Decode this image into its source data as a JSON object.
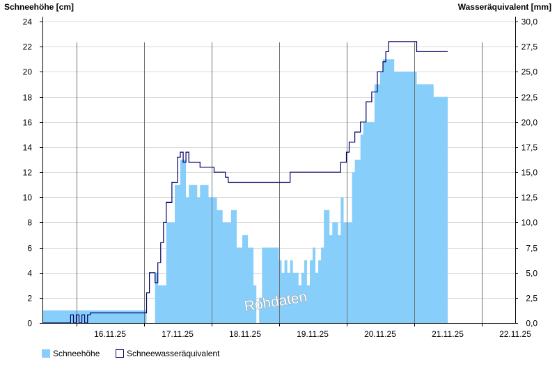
{
  "chart_data": {
    "type": "area",
    "ylabel_left": "Schneehöhe [cm]",
    "ylabel_right": "Wasseräquivalent [mm]",
    "watermark": "Rohdaten",
    "x_start": "2025-11-15T12:00",
    "x_end": "2025-11-22T12:00",
    "x_ticks": [
      "16.11.25",
      "17.11.25",
      "18.11.25",
      "19.11.25",
      "20.11.25",
      "21.11.25",
      "22.11.25"
    ],
    "ylim_left": [
      0,
      24
    ],
    "y_ticks_left": [
      "0",
      "2",
      "4",
      "6",
      "8",
      "10",
      "12",
      "14",
      "16",
      "18",
      "20",
      "22",
      "24"
    ],
    "ylim_right": [
      0,
      30
    ],
    "y_ticks_right": [
      "0,0",
      "2,5",
      "5,0",
      "7,5",
      "10,0",
      "12,5",
      "15,0",
      "17,5",
      "20,0",
      "22,5",
      "25,0",
      "27,5",
      "30,0"
    ],
    "grid": true,
    "legend_position": "bottom-left",
    "colors": {
      "snow_depth": "#87cefa",
      "swe": "#000066",
      "grid": "#d8d8d8",
      "vline": "#707070"
    },
    "series": [
      {
        "name": "Schneehöhe",
        "axis": "left",
        "style": "filled-area",
        "points": [
          [
            "2025-11-15T12:00",
            1
          ],
          [
            "2025-11-16T12:00",
            1
          ],
          [
            "2025-11-17T00:00",
            1
          ],
          [
            "2025-11-17T01:00",
            0
          ],
          [
            "2025-11-17T04:00",
            4
          ],
          [
            "2025-11-17T05:00",
            3
          ],
          [
            "2025-11-17T08:00",
            8
          ],
          [
            "2025-11-17T11:00",
            11
          ],
          [
            "2025-11-17T13:00",
            13
          ],
          [
            "2025-11-17T15:00",
            10
          ],
          [
            "2025-11-17T16:00",
            11
          ],
          [
            "2025-11-17T18:00",
            11
          ],
          [
            "2025-11-17T19:00",
            10
          ],
          [
            "2025-11-17T20:00",
            11
          ],
          [
            "2025-11-17T23:00",
            10
          ],
          [
            "2025-11-18T02:00",
            9
          ],
          [
            "2025-11-18T04:00",
            8
          ],
          [
            "2025-11-18T07:00",
            9
          ],
          [
            "2025-11-18T09:00",
            6
          ],
          [
            "2025-11-18T11:00",
            7
          ],
          [
            "2025-11-18T13:00",
            6
          ],
          [
            "2025-11-18T15:00",
            3
          ],
          [
            "2025-11-18T16:00",
            0
          ],
          [
            "2025-11-18T17:00",
            2
          ],
          [
            "2025-11-18T18:00",
            6
          ],
          [
            "2025-11-18T21:00",
            6
          ],
          [
            "2025-11-19T00:00",
            5
          ],
          [
            "2025-11-19T01:00",
            4
          ],
          [
            "2025-11-19T02:00",
            5
          ],
          [
            "2025-11-19T03:00",
            4
          ],
          [
            "2025-11-19T04:00",
            5
          ],
          [
            "2025-11-19T05:00",
            4
          ],
          [
            "2025-11-19T07:00",
            3
          ],
          [
            "2025-11-19T08:00",
            4
          ],
          [
            "2025-11-19T09:00",
            5
          ],
          [
            "2025-11-19T10:00",
            3
          ],
          [
            "2025-11-19T11:00",
            5
          ],
          [
            "2025-11-19T12:00",
            6
          ],
          [
            "2025-11-19T13:00",
            4
          ],
          [
            "2025-11-19T14:00",
            5
          ],
          [
            "2025-11-19T15:00",
            6
          ],
          [
            "2025-11-19T16:00",
            9
          ],
          [
            "2025-11-19T17:00",
            9
          ],
          [
            "2025-11-19T18:00",
            7
          ],
          [
            "2025-11-19T19:00",
            8
          ],
          [
            "2025-11-19T20:00",
            8
          ],
          [
            "2025-11-19T21:00",
            7
          ],
          [
            "2025-11-19T22:00",
            10
          ],
          [
            "2025-11-19T23:00",
            8
          ],
          [
            "2025-11-20T00:00",
            8
          ],
          [
            "2025-11-20T02:00",
            12
          ],
          [
            "2025-11-20T03:00",
            13
          ],
          [
            "2025-11-20T05:00",
            15
          ],
          [
            "2025-11-20T06:00",
            16
          ],
          [
            "2025-11-20T10:00",
            19
          ],
          [
            "2025-11-20T12:00",
            20
          ],
          [
            "2025-11-20T13:00",
            21
          ],
          [
            "2025-11-20T15:00",
            21
          ],
          [
            "2025-11-20T17:00",
            20
          ],
          [
            "2025-11-21T00:00",
            20
          ],
          [
            "2025-11-21T01:00",
            19
          ],
          [
            "2025-11-21T06:00",
            19
          ],
          [
            "2025-11-21T07:00",
            18
          ],
          [
            "2025-11-21T12:00",
            18
          ]
        ]
      },
      {
        "name": "Schneewasseräquivalent",
        "axis": "right",
        "style": "line",
        "points": [
          [
            "2025-11-15T12:00",
            0.0
          ],
          [
            "2025-11-15T21:00",
            0.0
          ],
          [
            "2025-11-15T22:00",
            0.8
          ],
          [
            "2025-11-15T23:00",
            0.0
          ],
          [
            "2025-11-16T00:00",
            0.8
          ],
          [
            "2025-11-16T01:00",
            0.0
          ],
          [
            "2025-11-16T02:00",
            0.8
          ],
          [
            "2025-11-16T03:00",
            0.0
          ],
          [
            "2025-11-16T04:00",
            0.8
          ],
          [
            "2025-11-16T05:00",
            1.0
          ],
          [
            "2025-11-16T23:00",
            1.0
          ],
          [
            "2025-11-17T01:00",
            3.0
          ],
          [
            "2025-11-17T02:00",
            5.0
          ],
          [
            "2025-11-17T04:00",
            4.0
          ],
          [
            "2025-11-17T05:00",
            6.0
          ],
          [
            "2025-11-17T06:00",
            8.0
          ],
          [
            "2025-11-17T07:00",
            10.0
          ],
          [
            "2025-11-17T08:00",
            12.0
          ],
          [
            "2025-11-17T10:00",
            14.0
          ],
          [
            "2025-11-17T12:00",
            16.5
          ],
          [
            "2025-11-17T13:00",
            17.0
          ],
          [
            "2025-11-17T14:00",
            16.0
          ],
          [
            "2025-11-17T15:00",
            17.0
          ],
          [
            "2025-11-17T16:00",
            16.0
          ],
          [
            "2025-11-17T20:00",
            15.5
          ],
          [
            "2025-11-18T01:00",
            15.0
          ],
          [
            "2025-11-18T04:00",
            15.0
          ],
          [
            "2025-11-18T05:00",
            14.5
          ],
          [
            "2025-11-18T06:00",
            14.0
          ],
          [
            "2025-11-19T00:00",
            14.0
          ],
          [
            "2025-11-19T03:00",
            14.0
          ],
          [
            "2025-11-19T04:00",
            15.0
          ],
          [
            "2025-11-19T20:00",
            15.0
          ],
          [
            "2025-11-19T22:00",
            16.0
          ],
          [
            "2025-11-20T00:00",
            17.0
          ],
          [
            "2025-11-20T01:00",
            18.0
          ],
          [
            "2025-11-20T03:00",
            19.0
          ],
          [
            "2025-11-20T05:00",
            20.0
          ],
          [
            "2025-11-20T07:00",
            22.0
          ],
          [
            "2025-11-20T09:00",
            23.0
          ],
          [
            "2025-11-20T11:00",
            25.0
          ],
          [
            "2025-11-20T13:00",
            26.0
          ],
          [
            "2025-11-20T14:00",
            27.0
          ],
          [
            "2025-11-20T15:00",
            28.0
          ],
          [
            "2025-11-21T00:00",
            28.0
          ],
          [
            "2025-11-21T01:00",
            27.0
          ],
          [
            "2025-11-21T12:00",
            27.0
          ]
        ]
      }
    ]
  }
}
